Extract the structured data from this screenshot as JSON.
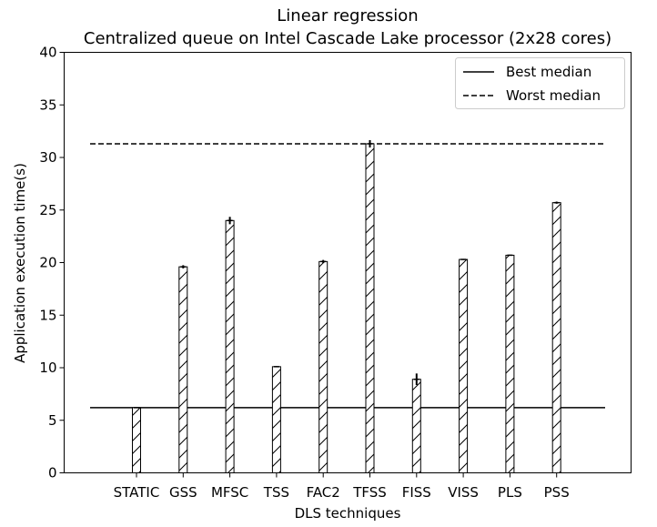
{
  "chart_data": {
    "type": "bar",
    "title": "Linear regression",
    "subtitle": "Centralized queue on Intel Cascade Lake processor (2x28 cores)",
    "xlabel": "DLS techniques",
    "ylabel": "Application execution time(s)",
    "ylim": [
      0,
      40
    ],
    "yticks": [
      0,
      5,
      10,
      15,
      20,
      25,
      30,
      35,
      40
    ],
    "categories": [
      "STATIC",
      "GSS",
      "MFSC",
      "TSS",
      "FAC2",
      "TFSS",
      "FISS",
      "VISS",
      "PLS",
      "PSS"
    ],
    "values": [
      6.2,
      19.6,
      24.0,
      10.1,
      20.1,
      31.3,
      8.9,
      20.3,
      20.7,
      25.7
    ],
    "error_low": [
      0.05,
      0.15,
      0.35,
      0.05,
      0.15,
      0.35,
      0.55,
      0.05,
      0.05,
      0.1
    ],
    "error_high": [
      0.05,
      0.15,
      0.35,
      0.05,
      0.15,
      0.35,
      0.55,
      0.05,
      0.05,
      0.1
    ],
    "hatch": "diagonal",
    "grid": false,
    "reference_lines": [
      {
        "name": "Best median",
        "value": 6.2,
        "style": "solid"
      },
      {
        "name": "Worst median",
        "value": 31.3,
        "style": "dashed"
      }
    ],
    "legend": {
      "position": "top-right",
      "entries": [
        "Best median",
        "Worst median"
      ]
    }
  }
}
